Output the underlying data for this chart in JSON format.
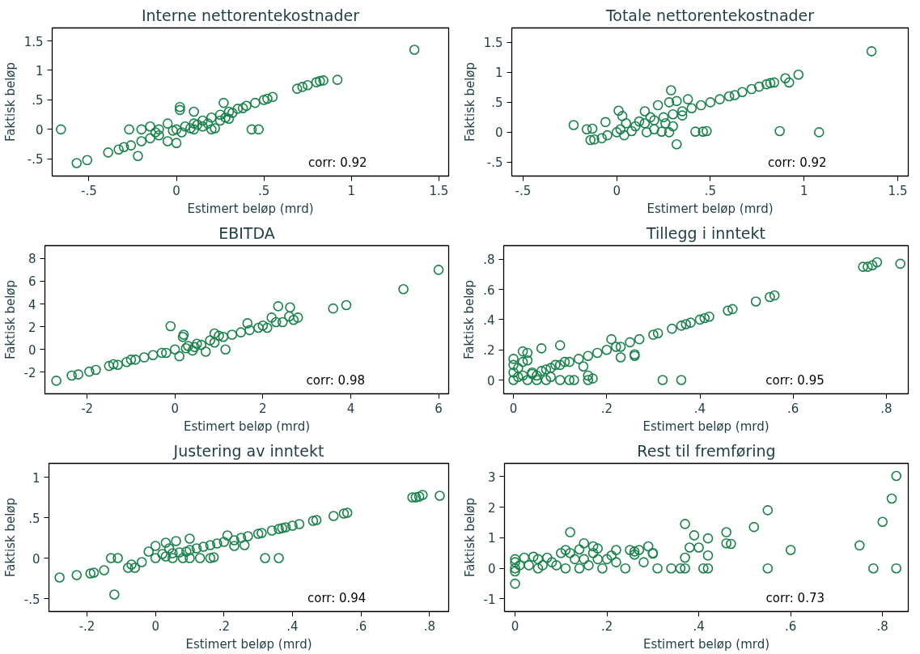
{
  "chart_data": [
    {
      "type": "scatter",
      "title": "Interne nettorentekostnader",
      "xlabel": "Estimert beløp (mrd)",
      "ylabel": "Faktisk beløp",
      "annotations": [
        "corr: 0.92"
      ],
      "marker": "circle",
      "grid": false,
      "color": "#17824a",
      "xlim": [
        -0.71,
        1.556
      ],
      "ylim": [
        -0.79,
        1.72
      ],
      "xticks": [
        {
          "value": -0.5,
          "label": "-.5"
        },
        0,
        {
          "value": 0.5,
          "label": ".5"
        },
        1,
        1.5
      ],
      "yticks": [
        {
          "value": -0.5,
          "label": "-.5"
        },
        0,
        {
          "value": 0.5,
          "label": ".5"
        },
        1,
        1.5
      ],
      "x": [
        -0.66,
        -0.57,
        -0.51,
        -0.39,
        -0.33,
        -0.3,
        -0.26,
        -0.22,
        -0.27,
        -0.2,
        -0.15,
        -0.1,
        -0.05,
        0,
        0.02,
        0.02,
        0.1,
        0,
        0.05,
        0.1,
        0.15,
        0.2,
        0.25,
        0.27,
        0.3,
        0.35,
        0.4,
        0.45,
        0.5,
        0.55,
        0.43,
        0.47,
        0.69,
        0.72,
        0.75,
        0.8,
        0.82,
        0.84,
        0.92,
        1.36,
        0.2,
        0.3,
        0.1,
        -0.1,
        0.15,
        -0.05,
        0.25,
        0.22,
        0.03,
        0.18,
        0.08,
        -0.02,
        0.12,
        0.28,
        0.32,
        0.38,
        0.52,
        -0.15,
        -0.2,
        -0.12
      ],
      "values": [
        0,
        -0.57,
        -0.52,
        -0.39,
        -0.34,
        -0.3,
        -0.27,
        -0.45,
        0,
        0,
        0.05,
        -0.1,
        -0.2,
        -0.23,
        0.38,
        0.33,
        0.3,
        0,
        0.05,
        0.1,
        0.15,
        0.2,
        0.25,
        0.45,
        0.3,
        0.35,
        0.4,
        0.45,
        0.5,
        0.55,
        0,
        0,
        0.69,
        0.72,
        0.75,
        0.8,
        0.82,
        0.83,
        0.84,
        1.35,
        0,
        0.18,
        0,
        0,
        0.05,
        0.1,
        0.15,
        0.02,
        -0.05,
        0.1,
        0.02,
        -0.02,
        0.08,
        0.2,
        0.28,
        0.36,
        0.52,
        -0.15,
        -0.2,
        -0.05
      ]
    },
    {
      "type": "scatter",
      "title": "Totale nettorentekostnader",
      "xlabel": "Estimert beløp (mrd)",
      "ylabel": "Faktisk beløp",
      "annotations": [
        "corr: 0.92"
      ],
      "marker": "circle",
      "grid": false,
      "color": "#17824a",
      "xlim": [
        -0.56,
        1.556
      ],
      "ylim": [
        -0.73,
        1.74
      ],
      "xticks": [
        {
          "value": -0.5,
          "label": "-.5"
        },
        0,
        {
          "value": 0.5,
          "label": ".5"
        },
        1,
        1.5
      ],
      "yticks": [
        {
          "value": -0.5,
          "label": "-.5"
        },
        0,
        {
          "value": 0.5,
          "label": ".5"
        },
        1,
        1.5
      ],
      "x": [
        -0.23,
        -0.16,
        -0.13,
        -0.14,
        -0.12,
        -0.08,
        -0.06,
        -0.05,
        0,
        0.01,
        0.03,
        0.05,
        0.1,
        0.15,
        0.15,
        0.2,
        0.22,
        0.25,
        0.28,
        0.29,
        0.3,
        0.32,
        0.35,
        0.38,
        0.4,
        0.45,
        0.5,
        0.55,
        0.6,
        0.63,
        0.67,
        0.72,
        0.76,
        0.8,
        0.82,
        0.84,
        0.9,
        0.92,
        0.97,
        1.36,
        0.42,
        0.46,
        0.48,
        0.87,
        1.08,
        0.32,
        0.28,
        0.24,
        0.16,
        0.08,
        0.3,
        0.2,
        0.12,
        0.04,
        0.26,
        0.02,
        0.18,
        0.35
      ],
      "values": [
        0.12,
        0.05,
        0.06,
        -0.13,
        -0.12,
        -0.1,
        0.17,
        -0.05,
        0,
        0.36,
        0.27,
        0.15,
        0.1,
        0.15,
        0.35,
        0.2,
        0.45,
        0.25,
        0.5,
        0.7,
        0.3,
        0.52,
        0.35,
        0.55,
        0.4,
        0.45,
        0.5,
        0.55,
        0.6,
        0.62,
        0.67,
        0.72,
        0.76,
        0.8,
        0.82,
        0.83,
        0.9,
        0.83,
        0.96,
        1.35,
        0.01,
        0.01,
        0.02,
        0.02,
        0,
        -0.2,
        0,
        0.01,
        0,
        0.02,
        0.1,
        0.05,
        0.18,
        -0.05,
        0.15,
        0.05,
        0.25,
        0.28
      ]
    },
    {
      "type": "scatter",
      "title": "EBITDA",
      "xlabel": "Estimert beløp (mrd)",
      "ylabel": "Faktisk beløp",
      "annotations": [
        "corr: 0.98"
      ],
      "marker": "circle",
      "grid": false,
      "color": "#17824a",
      "xlim": [
        -2.96,
        6.23
      ],
      "ylim": [
        -3.9,
        9.13
      ],
      "xticks": [
        -2,
        0,
        2,
        4,
        6
      ],
      "yticks": [
        -2,
        0,
        2,
        4,
        6,
        8
      ],
      "x": [
        -2.7,
        -2.35,
        -2.2,
        -1.95,
        -1.8,
        -1.5,
        -1.4,
        -1.3,
        -1.1,
        -1,
        -0.9,
        -0.7,
        -0.5,
        -0.3,
        -0.1,
        0,
        0.2,
        0.18,
        0.3,
        0.5,
        0.7,
        0.8,
        0.9,
        1.1,
        1.15,
        1.3,
        1.5,
        1.65,
        1.7,
        1.9,
        2,
        2.1,
        2.2,
        2.3,
        2.35,
        2.45,
        2.6,
        2.62,
        2.7,
        2.8,
        3.6,
        3.9,
        5.2,
        6.0,
        0.1,
        0.4,
        0.6,
        -0.2,
        0.25,
        0.9,
        1.0,
        0.45
      ],
      "values": [
        -2.75,
        -2.3,
        -2.2,
        -1.95,
        -1.8,
        -1.45,
        -1.3,
        -1.35,
        -1.1,
        -0.9,
        -0.9,
        -0.7,
        -0.5,
        -0.3,
        2.05,
        0,
        1.3,
        1.1,
        0.3,
        0.5,
        -0.2,
        0.8,
        1.4,
        1.1,
        0,
        1.3,
        1.5,
        2.3,
        1.7,
        1.9,
        2.1,
        1.9,
        2.8,
        2.4,
        3.8,
        2.4,
        2.9,
        3.7,
        2.6,
        2.8,
        3.6,
        3.9,
        5.3,
        7.0,
        -0.6,
        -0.1,
        0.4,
        -0.3,
        0.1,
        0.6,
        1.2,
        0.2
      ]
    },
    {
      "type": "scatter",
      "title": "Tillegg i inntekt",
      "xlabel": "Estimert beløp (mrd)",
      "ylabel": "Faktisk beløp",
      "annotations": [
        "corr: 0.95"
      ],
      "marker": "circle",
      "grid": false,
      "color": "#17824a",
      "xlim": [
        -0.021,
        0.847
      ],
      "ylim": [
        -0.091,
        0.89
      ],
      "xticks": [
        0,
        {
          "value": 0.2,
          "label": ".2"
        },
        {
          "value": 0.4,
          "label": ".4"
        },
        {
          "value": 0.6,
          "label": ".6"
        },
        {
          "value": 0.8,
          "label": ".8"
        }
      ],
      "yticks": [
        0,
        {
          "value": 0.2,
          "label": ".2"
        },
        {
          "value": 0.4,
          "label": ".4"
        },
        {
          "value": 0.6,
          "label": ".6"
        },
        {
          "value": 0.8,
          "label": ".8"
        }
      ],
      "x": [
        0,
        0,
        0,
        0,
        0.01,
        0.01,
        0.02,
        0.03,
        0.02,
        0.03,
        0.04,
        0.05,
        0.06,
        0.06,
        0.07,
        0.08,
        0.09,
        0.1,
        0.1,
        0.1,
        0.11,
        0.12,
        0.13,
        0.14,
        0.15,
        0.16,
        0.16,
        0.17,
        0.16,
        0.18,
        0.2,
        0.21,
        0.22,
        0.23,
        0.23,
        0.25,
        0.26,
        0.26,
        0.27,
        0.3,
        0.31,
        0.34,
        0.36,
        0.37,
        0.38,
        0.4,
        0.41,
        0.42,
        0.46,
        0.47,
        0.52,
        0.55,
        0.56,
        0.32,
        0.36,
        0.75,
        0.76,
        0.77,
        0.78,
        0.83,
        0.03,
        0.02,
        0.05,
        0.08,
        0.12,
        0.07,
        0.04
      ],
      "values": [
        0,
        0.05,
        0.1,
        0.14,
        0.02,
        0.08,
        0.19,
        0.18,
        0.12,
        0.13,
        0.05,
        0,
        0.21,
        0.06,
        0,
        0.08,
        0.1,
        0.23,
        0.1,
        0,
        0.12,
        0,
        0,
        0.14,
        0.09,
        0.03,
        0,
        0.01,
        0.16,
        0.18,
        0.2,
        0.27,
        0.22,
        0.15,
        0.22,
        0.25,
        0.16,
        0.17,
        0.27,
        0.3,
        0.31,
        0.34,
        0.36,
        0.37,
        0.38,
        0.4,
        0.41,
        0.42,
        0.46,
        0.47,
        0.52,
        0.55,
        0.56,
        0,
        0,
        0.75,
        0.75,
        0.76,
        0.78,
        0.77,
        0,
        0.03,
        0.03,
        0.02,
        0.12,
        0.07,
        0.04
      ]
    },
    {
      "type": "scatter",
      "title": "Justering av inntekt",
      "xlabel": "Estimert beløp (mrd)",
      "ylabel": "Faktisk beløp",
      "annotations": [
        "corr: 0.94"
      ],
      "marker": "circle",
      "grid": false,
      "color": "#17824a",
      "xlim": [
        -0.311,
        0.856
      ],
      "ylim": [
        -0.66,
        1.17
      ],
      "xticks": [
        {
          "value": -0.2,
          "label": "-.2"
        },
        0,
        {
          "value": 0.2,
          "label": ".2"
        },
        {
          "value": 0.4,
          "label": ".4"
        },
        {
          "value": 0.6,
          "label": ".6"
        },
        {
          "value": 0.8,
          "label": ".8"
        }
      ],
      "yticks": [
        {
          "value": -0.5,
          "label": "-.5"
        },
        0,
        {
          "value": 0.5,
          "label": ".5"
        },
        1
      ],
      "x": [
        -0.28,
        -0.23,
        -0.19,
        -0.18,
        -0.15,
        -0.13,
        -0.11,
        -0.12,
        -0.08,
        -0.07,
        -0.06,
        -0.04,
        -0.02,
        0,
        0,
        0.02,
        0.03,
        0.04,
        0.05,
        0.06,
        0.07,
        0.08,
        0.1,
        0.1,
        0.1,
        0.12,
        0.13,
        0.14,
        0.16,
        0.16,
        0.17,
        0.18,
        0.2,
        0.21,
        0.23,
        0.23,
        0.25,
        0.26,
        0.27,
        0.3,
        0.31,
        0.34,
        0.36,
        0.37,
        0.38,
        0.4,
        0.42,
        0.46,
        0.47,
        0.52,
        0.55,
        0.56,
        0.32,
        0.36,
        0.75,
        0.76,
        0.77,
        0.78,
        0.83,
        0.03,
        0.05,
        0.09
      ],
      "values": [
        -0.24,
        -0.21,
        -0.19,
        -0.18,
        -0.15,
        0,
        0,
        -0.45,
        -0.12,
        -0.08,
        -0.12,
        -0.05,
        0.08,
        0,
        0.15,
        0.05,
        0.19,
        0.12,
        0,
        0.21,
        0.07,
        0,
        0.24,
        0.1,
        0,
        0.12,
        0,
        0.14,
        0.16,
        0,
        0.01,
        0.18,
        0.2,
        0.28,
        0.15,
        0.22,
        0.25,
        0.16,
        0.27,
        0.3,
        0.31,
        0.34,
        0.36,
        0.37,
        0.38,
        0.4,
        0.42,
        0.46,
        0.47,
        0.52,
        0.55,
        0.56,
        0,
        0,
        0.75,
        0.75,
        0.76,
        0.78,
        0.77,
        0.02,
        0.06,
        0.08
      ]
    },
    {
      "type": "scatter",
      "title": "Rest til fremføring",
      "xlabel": "Estimert beløp (mrd)",
      "ylabel": "Faktisk beløp",
      "annotations": [
        "corr: 0.73"
      ],
      "marker": "circle",
      "grid": false,
      "color": "#17824a",
      "xlim": [
        -0.023,
        0.856
      ],
      "ylim": [
        -1.41,
        3.43
      ],
      "xticks": [
        0,
        {
          "value": 0.2,
          "label": ".2"
        },
        {
          "value": 0.4,
          "label": ".4"
        },
        {
          "value": 0.6,
          "label": ".6"
        },
        {
          "value": 0.8,
          "label": ".8"
        }
      ],
      "yticks": [
        -1,
        0,
        1,
        2,
        3
      ],
      "x": [
        0,
        0,
        0,
        0,
        0,
        0.01,
        0.02,
        0.03,
        0.04,
        0.05,
        0.06,
        0.07,
        0.08,
        0.09,
        0.1,
        0.11,
        0.12,
        0.12,
        0.13,
        0.14,
        0.15,
        0.15,
        0.16,
        0.17,
        0.17,
        0.18,
        0.18,
        0.19,
        0.2,
        0.21,
        0.22,
        0.22,
        0.24,
        0.25,
        0.26,
        0.26,
        0.27,
        0.28,
        0.29,
        0.3,
        0.3,
        0.31,
        0.34,
        0.36,
        0.37,
        0.37,
        0.37,
        0.39,
        0.38,
        0.4,
        0.41,
        0.42,
        0.42,
        0.42,
        0.46,
        0.46,
        0.47,
        0.52,
        0.55,
        0.55,
        0.6,
        0.75,
        0.78,
        0.8,
        0.82,
        0.83,
        0.83,
        0.11,
        0.05,
        0.14
      ],
      "values": [
        0,
        0.3,
        -0.1,
        -0.5,
        0.2,
        0.1,
        0.35,
        0.1,
        0.38,
        0.3,
        0.1,
        0.35,
        0.2,
        0.1,
        0.5,
        0.6,
        1.18,
        0.5,
        0.3,
        0.62,
        0.82,
        0.3,
        0.1,
        0.5,
        0.72,
        0.65,
        0.3,
        0,
        0.3,
        0.42,
        0.6,
        0.2,
        0,
        0.6,
        0.45,
        0.55,
        0.6,
        0.2,
        0.72,
        0.5,
        0.48,
        0,
        0,
        0,
        0.35,
        1.45,
        0,
        1.08,
        0.68,
        0.68,
        0,
        0.42,
        0.98,
        0,
        1.18,
        0.82,
        0.8,
        1.35,
        1.9,
        0,
        0.6,
        0.75,
        0,
        1.52,
        2.28,
        0,
        3.02,
        0,
        0,
        0
      ]
    }
  ]
}
